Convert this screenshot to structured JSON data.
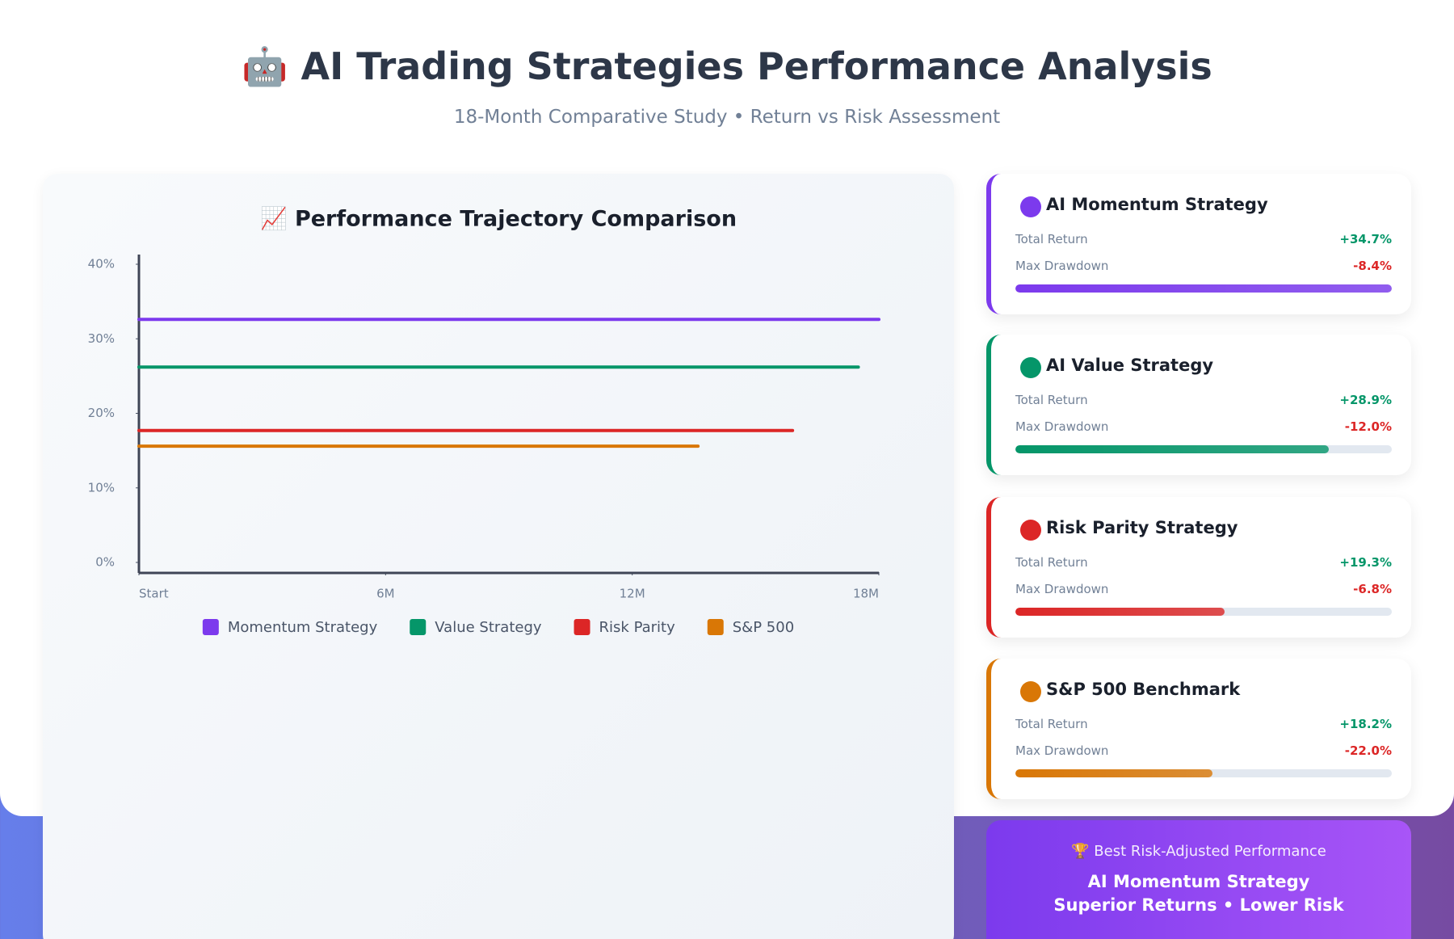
{
  "header": {
    "title": "🤖 AI Trading Strategies Performance Analysis",
    "subtitle": "18-Month Comparative Study • Return vs Risk Assessment"
  },
  "chart_data": {
    "type": "line",
    "title": "📈 Performance Trajectory Comparison",
    "xlim": [
      0,
      18
    ],
    "xticks": [
      {
        "value": 0,
        "label": "Start"
      },
      {
        "value": 6,
        "label": "6M"
      },
      {
        "value": 12,
        "label": "12M"
      },
      {
        "value": 18,
        "label": "18M"
      }
    ],
    "ylim": [
      0,
      40
    ],
    "yticks": [
      {
        "value": 0,
        "label": "0%"
      },
      {
        "value": 10,
        "label": "10%"
      },
      {
        "value": 20,
        "label": "20%"
      },
      {
        "value": 30,
        "label": "30%"
      },
      {
        "value": 40,
        "label": "40%"
      }
    ],
    "series": [
      {
        "name": "Momentum Strategy",
        "color": "#7c3aed",
        "x": [
          0,
          18
        ],
        "values": [
          32.6,
          32.6
        ]
      },
      {
        "name": "Value Strategy",
        "color": "#059669",
        "x": [
          0,
          17.5
        ],
        "values": [
          26.2,
          26.2
        ]
      },
      {
        "name": "Risk Parity",
        "color": "#dc2626",
        "x": [
          0,
          15.9
        ],
        "values": [
          17.7,
          17.7
        ]
      },
      {
        "name": "S&P 500",
        "color": "#d97706",
        "x": [
          0,
          13.6
        ],
        "values": [
          15.6,
          15.6
        ]
      }
    ]
  },
  "cards": {
    "return_label": "Total Return",
    "drawdown_label": "Max Drawdown",
    "items": [
      {
        "name": "AI Momentum Strategy",
        "color": "#7c3aed",
        "return": "+34.7%",
        "drawdown": "-8.4%",
        "bar": 100
      },
      {
        "name": "AI Value Strategy",
        "color": "#059669",
        "return": "+28.9%",
        "drawdown": "-12.0%",
        "bar": 83.3
      },
      {
        "name": "Risk Parity Strategy",
        "color": "#dc2626",
        "return": "+19.3%",
        "drawdown": "-6.8%",
        "bar": 55.6
      },
      {
        "name": "S&P 500 Benchmark",
        "color": "#d97706",
        "return": "+18.2%",
        "drawdown": "-22.0%",
        "bar": 52.4
      }
    ]
  },
  "banner": {
    "label": "🏆 Best Risk-Adjusted Performance",
    "line1": "AI Momentum Strategy",
    "line2": "Superior Returns • Lower Risk"
  }
}
